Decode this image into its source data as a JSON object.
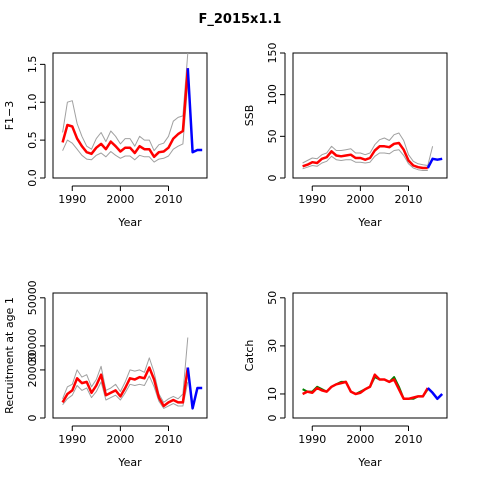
{
  "title": "F_2015x1.1",
  "colors": {
    "estimate": "#ff0000",
    "projection": "#0000ff",
    "interval": "#a0a0a0",
    "catch_obs": "#008000"
  },
  "chart_data": [
    {
      "type": "line",
      "ylabel": "F1−3",
      "xlabel": "Year",
      "xlim": [
        1986,
        2018
      ],
      "ylim": [
        0,
        1.65
      ],
      "x_ticks": [
        "1990",
        "2000",
        "2010"
      ],
      "y_ticks": [
        "0.0",
        "0.5",
        "1.0",
        "1.5"
      ],
      "series": [
        {
          "role": "upper",
          "x": [
            1988,
            1989,
            1990,
            1991,
            1992,
            1993,
            1994,
            1995,
            1996,
            1997,
            1998,
            1999,
            2000,
            2001,
            2002,
            2003,
            2004,
            2005,
            2006,
            2007,
            2008,
            2009,
            2010,
            2011,
            2012,
            2013,
            2014
          ],
          "values": [
            0.6,
            1.0,
            1.02,
            0.72,
            0.55,
            0.42,
            0.38,
            0.52,
            0.6,
            0.48,
            0.62,
            0.55,
            0.45,
            0.52,
            0.52,
            0.42,
            0.55,
            0.5,
            0.5,
            0.36,
            0.44,
            0.46,
            0.55,
            0.75,
            0.8,
            0.82,
            1.65
          ]
        },
        {
          "role": "estimate",
          "x": [
            1988,
            1989,
            1990,
            1991,
            1992,
            1993,
            1994,
            1995,
            1996,
            1997,
            1998,
            1999,
            2000,
            2001,
            2002,
            2003,
            2004,
            2005,
            2006,
            2007,
            2008,
            2009,
            2010,
            2011,
            2012,
            2013,
            2014
          ],
          "values": [
            0.47,
            0.7,
            0.68,
            0.52,
            0.42,
            0.34,
            0.32,
            0.4,
            0.45,
            0.38,
            0.48,
            0.42,
            0.35,
            0.4,
            0.4,
            0.33,
            0.42,
            0.38,
            0.38,
            0.28,
            0.34,
            0.35,
            0.4,
            0.52,
            0.58,
            0.62,
            1.45
          ]
        },
        {
          "role": "lower",
          "x": [
            1988,
            1989,
            1990,
            1991,
            1992,
            1993,
            1994,
            1995,
            1996,
            1997,
            1998,
            1999,
            2000,
            2001,
            2002,
            2003,
            2004,
            2005,
            2006,
            2007,
            2008,
            2009,
            2010,
            2011,
            2012,
            2013,
            2014
          ],
          "values": [
            0.36,
            0.5,
            0.46,
            0.38,
            0.3,
            0.25,
            0.24,
            0.3,
            0.33,
            0.28,
            0.35,
            0.3,
            0.26,
            0.29,
            0.29,
            0.24,
            0.3,
            0.28,
            0.28,
            0.21,
            0.25,
            0.26,
            0.29,
            0.38,
            0.42,
            0.45,
            1.25
          ]
        },
        {
          "role": "projection",
          "x": [
            2014,
            2015,
            2016,
            2017
          ],
          "values": [
            1.45,
            0.34,
            0.37,
            0.37
          ]
        }
      ]
    },
    {
      "type": "line",
      "ylabel": "SSB",
      "xlabel": "Year",
      "xlim": [
        1986,
        2018
      ],
      "ylim": [
        0,
        150
      ],
      "x_ticks": [
        "1990",
        "2000",
        "2010"
      ],
      "y_ticks": [
        "0",
        "50",
        "100",
        "150"
      ],
      "series": [
        {
          "role": "upper",
          "x": [
            1988,
            1989,
            1990,
            1991,
            1992,
            1993,
            1994,
            1995,
            1996,
            1997,
            1998,
            1999,
            2000,
            2001,
            2002,
            2003,
            2004,
            2005,
            2006,
            2007,
            2008,
            2009,
            2010,
            2011,
            2012,
            2013,
            2014,
            2015
          ],
          "values": [
            18,
            21,
            24,
            23,
            28,
            30,
            38,
            33,
            33,
            34,
            35,
            30,
            30,
            28,
            30,
            40,
            46,
            48,
            45,
            52,
            54,
            45,
            28,
            20,
            17,
            16,
            15,
            38
          ]
        },
        {
          "role": "estimate",
          "x": [
            1988,
            1989,
            1990,
            1991,
            1992,
            1993,
            1994,
            1995,
            1996,
            1997,
            1998,
            1999,
            2000,
            2001,
            2002,
            2003,
            2004,
            2005,
            2006,
            2007,
            2008,
            2009,
            2010,
            2011,
            2012,
            2013,
            2014
          ],
          "values": [
            14,
            16,
            19,
            18,
            23,
            25,
            32,
            27,
            26,
            27,
            28,
            24,
            24,
            22,
            24,
            33,
            38,
            38,
            37,
            41,
            42,
            34,
            21,
            15,
            13,
            12,
            12
          ]
        },
        {
          "role": "lower",
          "x": [
            1988,
            1989,
            1990,
            1991,
            1992,
            1993,
            1994,
            1995,
            1996,
            1997,
            1998,
            1999,
            2000,
            2001,
            2002,
            2003,
            2004,
            2005,
            2006,
            2007,
            2008,
            2009,
            2010,
            2011,
            2012,
            2013,
            2014
          ],
          "values": [
            11,
            13,
            15,
            14,
            18,
            20,
            26,
            22,
            21,
            22,
            22,
            19,
            19,
            18,
            19,
            26,
            30,
            30,
            29,
            33,
            34,
            27,
            17,
            12,
            10,
            9,
            9
          ]
        },
        {
          "role": "projection",
          "x": [
            2014,
            2015,
            2016,
            2017
          ],
          "values": [
            12,
            23,
            22,
            23
          ]
        }
      ]
    },
    {
      "type": "line",
      "ylabel": "Recruitment at age 1",
      "xlabel": "Year",
      "xlim": [
        1986,
        2018
      ],
      "ylim": [
        0,
        52000
      ],
      "x_ticks": [
        "1990",
        "2000",
        "2010"
      ],
      "y_ticks": [
        "0",
        "20000",
        "30000",
        "50000"
      ],
      "series": [
        {
          "role": "upper",
          "x": [
            1988,
            1989,
            1990,
            1991,
            1992,
            1993,
            1994,
            1995,
            1996,
            1997,
            1998,
            1999,
            2000,
            2001,
            2002,
            2003,
            2004,
            2005,
            2006,
            2007,
            2008,
            2009,
            2010,
            2011,
            2012,
            2013,
            2014
          ],
          "values": [
            8000,
            13000,
            14000,
            20000,
            17000,
            18000,
            13000,
            16000,
            21500,
            11500,
            12500,
            14000,
            11000,
            15000,
            20000,
            19500,
            20000,
            19000,
            25000,
            19000,
            10000,
            6500,
            8000,
            9000,
            8000,
            10000,
            33500
          ]
        },
        {
          "role": "estimate",
          "x": [
            1988,
            1989,
            1990,
            1991,
            1992,
            1993,
            1994,
            1995,
            1996,
            1997,
            1998,
            1999,
            2000,
            2001,
            2002,
            2003,
            2004,
            2005,
            2006,
            2007,
            2008,
            2009,
            2010,
            2011,
            2012,
            2013,
            2014
          ],
          "values": [
            6500,
            10000,
            11500,
            16500,
            14500,
            15000,
            10500,
            13500,
            18000,
            9500,
            10500,
            11500,
            9000,
            12500,
            16500,
            16000,
            17000,
            16500,
            21000,
            16000,
            8500,
            5000,
            6500,
            7500,
            6500,
            6500,
            21000
          ]
        },
        {
          "role": "lower",
          "x": [
            1988,
            1989,
            1990,
            1991,
            1992,
            1993,
            1994,
            1995,
            1996,
            1997,
            1998,
            1999,
            2000,
            2001,
            2002,
            2003,
            2004,
            2005,
            2006,
            2007,
            2008,
            2009,
            2010,
            2011,
            2012,
            2013,
            2014
          ],
          "values": [
            5500,
            8000,
            9500,
            13500,
            11500,
            12500,
            8500,
            11000,
            15000,
            7500,
            8500,
            9500,
            7500,
            10500,
            14000,
            13500,
            14000,
            13500,
            17500,
            13000,
            7000,
            4000,
            5000,
            6000,
            5000,
            5000,
            15000
          ]
        },
        {
          "role": "projection",
          "x": [
            2014,
            2015,
            2016,
            2017
          ],
          "values": [
            21000,
            4000,
            12500,
            12500
          ]
        }
      ]
    },
    {
      "type": "line",
      "ylabel": "Catch",
      "xlabel": "Year",
      "xlim": [
        1986,
        2018
      ],
      "ylim": [
        0,
        52
      ],
      "x_ticks": [
        "1990",
        "2000",
        "2010"
      ],
      "y_ticks": [
        "0",
        "10",
        "30",
        "50"
      ],
      "series": [
        {
          "role": "observed",
          "x": [
            1988,
            1989,
            1990,
            1991,
            1992,
            1993,
            1994,
            1995,
            1996,
            1997,
            1998,
            1999,
            2000,
            2001,
            2002,
            2003,
            2004,
            2005,
            2006,
            2007,
            2008,
            2009,
            2010,
            2011,
            2012,
            2013,
            2014
          ],
          "values": [
            12,
            11,
            11,
            13,
            12,
            11,
            13,
            14,
            15,
            15,
            11,
            10,
            11,
            12,
            13,
            17,
            16,
            16,
            15,
            17,
            13,
            8,
            8,
            8,
            9,
            9,
            12
          ]
        },
        {
          "role": "estimate",
          "x": [
            1988,
            1989,
            1990,
            1991,
            1992,
            1993,
            1994,
            1995,
            1996,
            1997,
            1998,
            1999,
            2000,
            2001,
            2002,
            2003,
            2004,
            2005,
            2006,
            2007,
            2008,
            2009,
            2010,
            2011,
            2012,
            2013,
            2014
          ],
          "values": [
            10,
            11,
            10.5,
            12.5,
            11.5,
            11,
            13,
            14,
            14.5,
            15,
            11,
            10,
            10.5,
            12,
            13,
            18,
            16,
            16,
            15,
            16,
            12,
            8,
            8,
            8.5,
            9,
            9,
            12.5
          ]
        },
        {
          "role": "projection",
          "x": [
            2014,
            2015,
            2016,
            2017
          ],
          "values": [
            12.5,
            10.5,
            8,
            10
          ]
        }
      ]
    }
  ]
}
